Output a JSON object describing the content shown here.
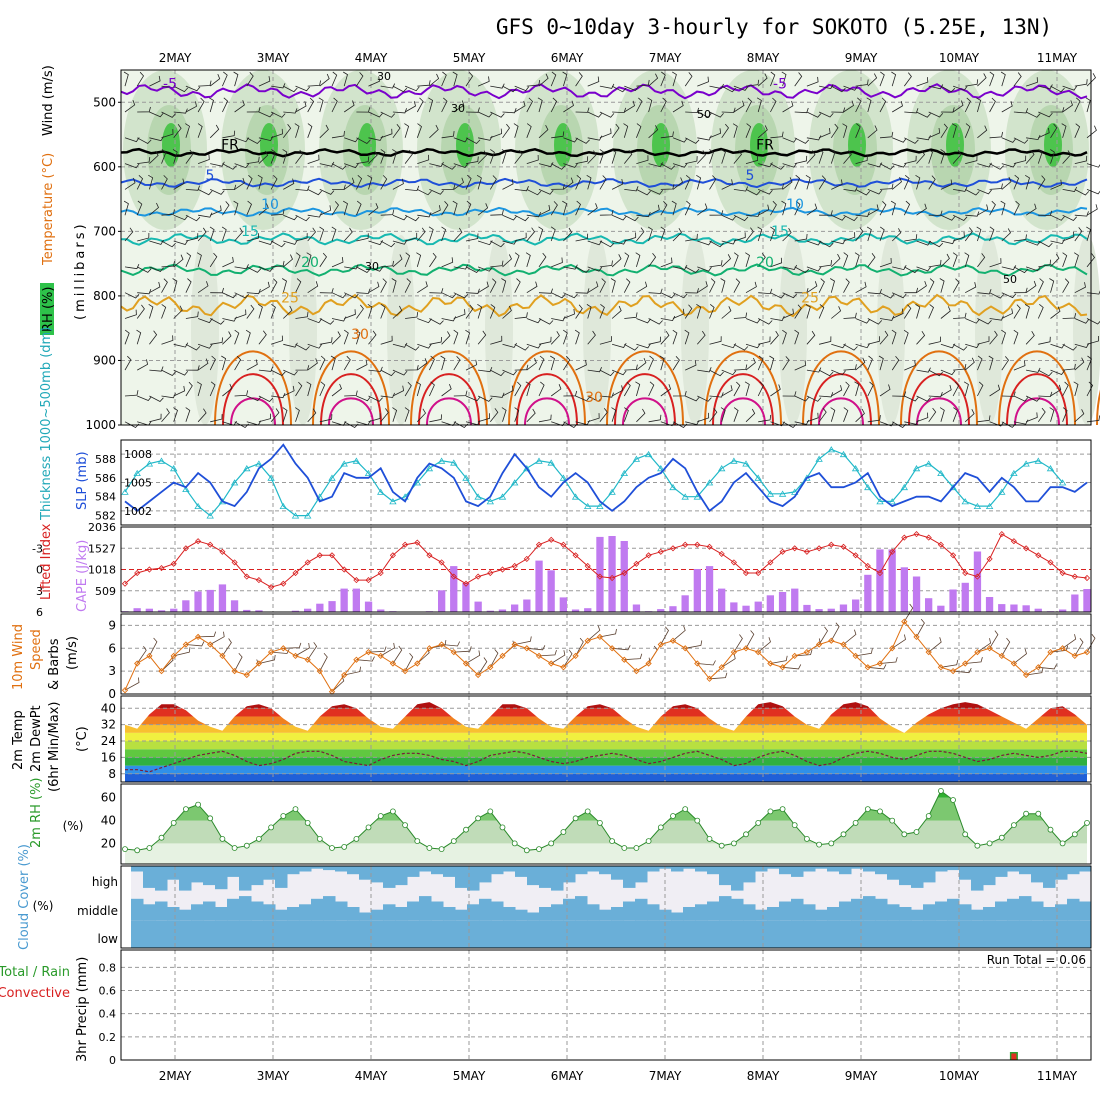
{
  "title": "GFS 0~10day 3-hourly for SOKOTO (5.25E, 13N)",
  "dates": [
    "2MAY",
    "3MAY",
    "4MAY",
    "5MAY",
    "6MAY",
    "7MAY",
    "8MAY",
    "9MAY",
    "10MAY",
    "11MAY"
  ],
  "colors": {
    "purple": "#7a00cc",
    "black": "#000000",
    "blue": "#1f4fd8",
    "skyblue": "#1c96e0",
    "teal": "#17b8b0",
    "green": "#12b070",
    "gold": "#e0a020",
    "orange": "#e07010",
    "red": "#d82020",
    "magenta": "#d0108a",
    "cape": "#c07af0",
    "cyan": "#20b8c8"
  },
  "chart_data": [
    {
      "id": "upper_air",
      "type": "heatmap",
      "ylabel": "(millibars)",
      "side_labels": [
        "RH (%)",
        "Temperature (°C)",
        "Wind (m/s)"
      ],
      "y_ticks": [
        "500",
        "600",
        "700",
        "800",
        "900",
        "1000"
      ],
      "ylim": [
        450,
        1000
      ],
      "isotherms": [
        {
          "label": "-5",
          "level": 483,
          "amp": 10,
          "color": "purple"
        },
        {
          "label": "FR",
          "level": 578,
          "amp": 5,
          "color": "black"
        },
        {
          "label": "5",
          "level": 625,
          "amp": 6,
          "color": "blue"
        },
        {
          "label": "10",
          "level": 670,
          "amp": 6,
          "color": "skyblue"
        },
        {
          "label": "15",
          "level": 712,
          "amp": 8,
          "color": "teal"
        },
        {
          "label": "20",
          "level": 760,
          "amp": 8,
          "color": "green"
        },
        {
          "label": "25",
          "level": 815,
          "amp": 15,
          "color": "gold"
        }
      ],
      "warm_isotherms": [
        {
          "label": "30",
          "base": 1000,
          "top": 848,
          "color": "orange"
        },
        {
          "label": "",
          "base": 1000,
          "top": 895,
          "color": "red"
        },
        {
          "label": "",
          "base": 1000,
          "top": 945,
          "color": "magenta"
        }
      ],
      "rh_labels": [
        "30",
        "30",
        "50",
        "30",
        "50"
      ]
    },
    {
      "id": "slp_thickness",
      "type": "line",
      "ylabel_left": "Thickness 1000~500mb (dm)",
      "ylabel_right": "SLP (mb)",
      "left_ticks": [
        "588",
        "586",
        "584",
        "582"
      ],
      "right_ticks": [
        "1008",
        "1005",
        "1002"
      ],
      "series": [
        {
          "name": "Thickness 1000~500mb",
          "unit": "dm",
          "ylim": [
            581,
            590
          ],
          "values": [
            584.5,
            586.5,
            587.5,
            587.8,
            587.0,
            584.8,
            583.0,
            582.0,
            583.5,
            585.5,
            587.0,
            587.5,
            586.0,
            583.0,
            582.0,
            582.0,
            584.0,
            586.0,
            587.5,
            587.8,
            586.5,
            584.5,
            583.5,
            584.0,
            585.5,
            587.0,
            587.8,
            587.6,
            586.0,
            584.0,
            583.5,
            584.0,
            585.5,
            587.0,
            587.8,
            587.6,
            586.0,
            584.0,
            583.0,
            583.0,
            584.5,
            586.5,
            588.0,
            588.5,
            587.0,
            585.0,
            584.0,
            584.0,
            585.5,
            587.0,
            587.8,
            587.5,
            586.0,
            584.3,
            584.3,
            584.5,
            586.0,
            588.0,
            589.0,
            588.5,
            587.0,
            585.0,
            583.5,
            583.5,
            585.0,
            587.0,
            587.5,
            586.5,
            585.0,
            583.5,
            583.0,
            583.0,
            584.5,
            586.5,
            587.5,
            587.8,
            587.0,
            585.5
          ],
          "color": "cyan"
        },
        {
          "name": "SLP",
          "unit": "mb",
          "ylim": [
            1000.5,
            1009.5
          ],
          "values": [
            1003.0,
            1002.0,
            1003.0,
            1004.0,
            1005.0,
            1004.5,
            1006.0,
            1005.0,
            1003.0,
            1002.5,
            1004.0,
            1006.5,
            1007.5,
            1009.0,
            1007.0,
            1005.5,
            1003.0,
            1003.5,
            1006.0,
            1005.5,
            1005.5,
            1006.5,
            1004.0,
            1003.0,
            1005.5,
            1007.0,
            1006.5,
            1005.5,
            1003.0,
            1002.5,
            1003.5,
            1006.0,
            1008.0,
            1006.5,
            1004.5,
            1003.5,
            1005.0,
            1006.0,
            1005.0,
            1003.0,
            1002.0,
            1003.0,
            1004.5,
            1005.5,
            1006.0,
            1007.5,
            1006.5,
            1004.0,
            1002.0,
            1003.0,
            1005.0,
            1006.0,
            1004.5,
            1003.0,
            1002.5,
            1003.5,
            1005.5,
            1006.0,
            1004.5,
            1004.5,
            1005.0,
            1006.0,
            1003.5,
            1002.5,
            1003.0,
            1003.5,
            1003.5,
            1003.0,
            1004.5,
            1006.0,
            1005.5,
            1004.0,
            1005.5,
            1004.5,
            1003.0,
            1003.0,
            1004.5,
            1004.5,
            1004.0,
            1005.0
          ],
          "color": "blue"
        }
      ]
    },
    {
      "id": "cape_li",
      "type": "bar",
      "ylabel_left": "Lifted Index",
      "ylabel_right": "CAPE (J/kg)",
      "li_ticks": [
        "-3",
        "0",
        "3",
        "6"
      ],
      "cape_ticks": [
        "2036",
        "1527",
        "1018",
        "509"
      ],
      "cape_ylim": [
        0,
        2036
      ],
      "li_ylim": [
        6,
        -6
      ],
      "cape": [
        20,
        90,
        80,
        40,
        80,
        280,
        490,
        530,
        660,
        280,
        50,
        40,
        10,
        0,
        30,
        80,
        200,
        260,
        560,
        560,
        250,
        60,
        20,
        0,
        10,
        20,
        520,
        1100,
        700,
        250,
        30,
        60,
        180,
        300,
        1230,
        1000,
        350,
        60,
        90,
        1800,
        1820,
        1700,
        180,
        20,
        70,
        140,
        400,
        1030,
        1100,
        560,
        230,
        150,
        250,
        400,
        480,
        560,
        170,
        70,
        80,
        180,
        300,
        890,
        1500,
        1500,
        1070,
        850,
        330,
        150,
        540,
        700,
        1450,
        360,
        190,
        180,
        160,
        80,
        20,
        60,
        420,
        550
      ],
      "li": [
        2.0,
        0.5,
        0.0,
        -0.2,
        -0.8,
        -3.0,
        -4.0,
        -3.5,
        -2.5,
        -1.0,
        1.0,
        1.5,
        2.5,
        2.0,
        0.5,
        -1.0,
        -2.0,
        -2.0,
        0.0,
        1.5,
        1.5,
        0.5,
        -2.0,
        -3.5,
        -3.8,
        -2.0,
        -1.0,
        1.0,
        2.0,
        1.0,
        0.5,
        0.0,
        -0.5,
        -1.5,
        -3.5,
        -4.2,
        -3.5,
        -2.0,
        -0.5,
        1.0,
        1.2,
        0.5,
        -0.8,
        -2.0,
        -2.5,
        -3.0,
        -3.5,
        -3.5,
        -3.2,
        -2.2,
        -1.0,
        0.5,
        0.5,
        -1.0,
        -2.5,
        -3.0,
        -2.5,
        -3.0,
        -3.5,
        -3.2,
        -2.0,
        -0.5,
        0.5,
        -2.5,
        -4.5,
        -5.0,
        -4.5,
        -3.5,
        -2.0,
        0.5,
        1.0,
        -1.5,
        -5.0,
        -4.0,
        -3.0,
        -2.0,
        -1.0,
        0.5,
        1.0,
        1.2
      ],
      "color_li": "red",
      "color_cape": "cape"
    },
    {
      "id": "wind10m",
      "type": "line",
      "ylabel": "10m Wind Speed & Barbs (m/s)",
      "ylabel_parts": [
        "10m Wind",
        "Speed",
        "& Barbs",
        "(m/s)"
      ],
      "ticks": [
        "9",
        "6",
        "3",
        "0"
      ],
      "ylim": [
        0,
        10.5
      ],
      "values": [
        0.5,
        4.0,
        5.0,
        3.0,
        5.0,
        6.5,
        7.5,
        6.5,
        5.0,
        3.0,
        2.5,
        4.0,
        5.5,
        6.0,
        5.0,
        4.5,
        3.0,
        0.3,
        2.5,
        4.5,
        5.5,
        5.0,
        4.0,
        3.0,
        4.0,
        6.0,
        6.5,
        5.5,
        4.0,
        2.5,
        3.5,
        5.0,
        6.5,
        6.0,
        5.0,
        4.0,
        3.5,
        5.0,
        7.0,
        7.5,
        6.0,
        4.5,
        3.0,
        4.0,
        6.5,
        7.0,
        6.0,
        4.0,
        2.0,
        3.5,
        5.5,
        6.0,
        5.5,
        4.0,
        3.5,
        5.0,
        5.5,
        6.5,
        7.0,
        6.5,
        5.0,
        3.5,
        4.0,
        6.0,
        9.5,
        7.5,
        5.5,
        3.5,
        3.0,
        4.0,
        5.5,
        6.0,
        5.0,
        4.0,
        2.5,
        3.5,
        5.5,
        6.0,
        5.0,
        5.5
      ],
      "color": "orange"
    },
    {
      "id": "temp2m",
      "type": "area",
      "ylabel_parts": [
        "2m Temp",
        "2m DewPt",
        "(6hr Min/Max)",
        "(°C)"
      ],
      "ticks": [
        "40",
        "32",
        "24",
        "16",
        "8"
      ],
      "ylim": [
        4,
        46
      ],
      "tmax": [
        32,
        30,
        37,
        42,
        42,
        39,
        34,
        31,
        29,
        36,
        41,
        42,
        40,
        35,
        31,
        29,
        36,
        41,
        42,
        40,
        35,
        31,
        30,
        36,
        42,
        43,
        40,
        35,
        31,
        30,
        36,
        42,
        42,
        40,
        35,
        31,
        30,
        36,
        41,
        42,
        40,
        35,
        31,
        29,
        36,
        41,
        42,
        40,
        35,
        31,
        29,
        36,
        42,
        43,
        41,
        36,
        32,
        30,
        37,
        42,
        43,
        41,
        35,
        31,
        28,
        33,
        37,
        40,
        42,
        43,
        42,
        39,
        36,
        33,
        30,
        35,
        40,
        41,
        37,
        32
      ],
      "dewpt": [
        10,
        10,
        9,
        11,
        13,
        15,
        17,
        18,
        19,
        17,
        14,
        12,
        13,
        15,
        18,
        19,
        19,
        17,
        14,
        13,
        12,
        15,
        17,
        18,
        18,
        17,
        15,
        14,
        12,
        14,
        17,
        18,
        19,
        18,
        16,
        14,
        13,
        14,
        16,
        17,
        18,
        17,
        15,
        13,
        14,
        16,
        18,
        19,
        17,
        15,
        12,
        13,
        16,
        18,
        19,
        17,
        14,
        12,
        13,
        16,
        18,
        19,
        18,
        16,
        15,
        17,
        19,
        19,
        18,
        16,
        14,
        15,
        17,
        18,
        17,
        16,
        17,
        19,
        19,
        18
      ],
      "color_dew": "red"
    },
    {
      "id": "rh2m",
      "type": "area",
      "ylabel": "2m RH (%)",
      "ticks": [
        "60",
        "40",
        "20"
      ],
      "ylim": [
        2,
        72
      ],
      "values": [
        15,
        14,
        16,
        25,
        38,
        50,
        54,
        42,
        24,
        16,
        18,
        24,
        34,
        44,
        50,
        38,
        24,
        16,
        17,
        24,
        34,
        44,
        48,
        36,
        22,
        16,
        15,
        22,
        32,
        42,
        48,
        34,
        20,
        14,
        15,
        20,
        30,
        42,
        48,
        38,
        22,
        16,
        16,
        22,
        34,
        44,
        50,
        40,
        24,
        18,
        20,
        28,
        38,
        48,
        50,
        36,
        24,
        19,
        20,
        28,
        38,
        50,
        48,
        40,
        28,
        30,
        44,
        66,
        58,
        28,
        18,
        20,
        25,
        36,
        46,
        46,
        32,
        20,
        28,
        38
      ],
      "color": "green"
    },
    {
      "id": "cloud",
      "type": "bar",
      "ylabel": "Cloud Cover (%)",
      "levels": [
        "high",
        "middle",
        "low"
      ],
      "high_fill_fraction": [
        0.2,
        0.8,
        0.9,
        0.5,
        0.9,
        0.6,
        0.7,
        0.85,
        0.4,
        0.9,
        0.7,
        0.5,
        0.8,
        0.3,
        0.2,
        0.1,
        0.15,
        0.2,
        0.3,
        0.5,
        0.6,
        0.8,
        0.7,
        0.4,
        0.2,
        0.3,
        0.4,
        0.8,
        0.9,
        0.6,
        0.3,
        0.2,
        0.4,
        0.7,
        0.8,
        0.9,
        0.6,
        0.3,
        0.2,
        0.3,
        0.5,
        0.8,
        0.6,
        0.2,
        0.1,
        0.2,
        0.1,
        0.2,
        0.3,
        0.7,
        0.9,
        0.6,
        0.2,
        0.1,
        0.3,
        0.4,
        0.2,
        0.1,
        0.2,
        0.3,
        0.1,
        0.2,
        0.3,
        0.5,
        0.7,
        0.8,
        0.6,
        0.2,
        0.15,
        0.5,
        0.9,
        0.7,
        0.4,
        0.2,
        0.3,
        0.6,
        0.8,
        0.5,
        0.3,
        0.2
      ],
      "middle_fill_fraction": [
        0.8,
        0.6,
        0.7,
        0.5,
        0.4,
        0.6,
        0.7,
        0.5,
        0.8,
        0.9,
        0.7,
        0.6,
        0.4,
        0.5,
        0.6,
        0.8,
        0.9,
        0.7,
        0.5,
        0.3,
        0.4,
        0.6,
        0.5,
        0.7,
        0.9,
        0.7,
        0.5,
        0.4,
        0.6,
        0.8,
        0.7,
        0.5,
        0.4,
        0.3,
        0.5,
        0.6,
        0.8,
        0.9,
        0.6,
        0.4,
        0.5,
        0.7,
        0.8,
        0.6,
        0.4,
        0.3,
        0.5,
        0.6,
        0.7,
        0.9,
        0.8,
        0.6,
        0.4,
        0.5,
        0.7,
        0.8,
        0.6,
        0.4,
        0.5,
        0.7,
        0.8,
        0.9,
        0.8,
        0.6,
        0.5,
        0.4,
        0.6,
        0.7,
        0.8,
        0.6,
        0.4,
        0.5,
        0.7,
        0.8,
        0.9,
        0.7,
        0.5,
        0.6,
        0.8,
        0.7
      ],
      "color": "#6aafd8"
    },
    {
      "id": "precip",
      "type": "bar",
      "ylabel": "3hr Precip (mm)",
      "ylabel_left": "Total / Rain",
      "ylabel_left2": "Convective",
      "ticks": [
        "0.8",
        "0.6",
        "0.4",
        "0.2",
        "0"
      ],
      "ylim": [
        0,
        0.95
      ],
      "run_total_text": "Run Total = 0.06",
      "values": [
        0,
        0,
        0,
        0,
        0,
        0,
        0,
        0,
        0,
        0,
        0,
        0,
        0,
        0,
        0,
        0,
        0,
        0,
        0,
        0,
        0,
        0,
        0,
        0,
        0,
        0,
        0,
        0,
        0,
        0,
        0,
        0,
        0,
        0,
        0,
        0,
        0,
        0,
        0,
        0,
        0,
        0,
        0,
        0,
        0,
        0,
        0,
        0,
        0,
        0,
        0,
        0,
        0,
        0,
        0,
        0,
        0,
        0,
        0,
        0,
        0,
        0,
        0,
        0,
        0,
        0,
        0,
        0,
        0,
        0,
        0,
        0,
        0,
        0.06,
        0,
        0,
        0,
        0,
        0,
        0
      ],
      "color_total": "green",
      "color_conv": "red"
    }
  ]
}
